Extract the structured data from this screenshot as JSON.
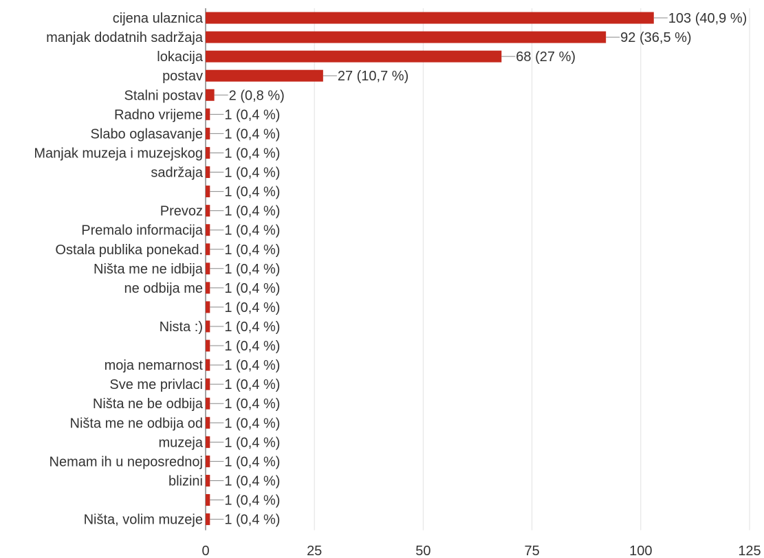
{
  "chart_data": {
    "type": "bar",
    "orientation": "horizontal",
    "bar_color": "#c5281c",
    "xlim": [
      0,
      125
    ],
    "x_ticks": [
      0,
      25,
      50,
      75,
      100,
      125
    ],
    "grid": true,
    "rows": [
      {
        "value": 103,
        "label": "103 (40,9 %)"
      },
      {
        "value": 92,
        "label": "92 (36,5 %)"
      },
      {
        "value": 68,
        "label": "68 (27 %)"
      },
      {
        "value": 27,
        "label": "27 (10,7 %)"
      },
      {
        "value": 2,
        "label": "2 (0,8 %)"
      },
      {
        "value": 1,
        "label": "1 (0,4 %)"
      },
      {
        "value": 1,
        "label": "1 (0,4 %)"
      },
      {
        "value": 1,
        "label": "1 (0,4 %)"
      },
      {
        "value": 1,
        "label": "1 (0,4 %)"
      },
      {
        "value": 1,
        "label": "1 (0,4 %)"
      },
      {
        "value": 1,
        "label": "1 (0,4 %)"
      },
      {
        "value": 1,
        "label": "1 (0,4 %)"
      },
      {
        "value": 1,
        "label": "1 (0,4 %)"
      },
      {
        "value": 1,
        "label": "1 (0,4 %)"
      },
      {
        "value": 1,
        "label": "1 (0,4 %)"
      },
      {
        "value": 1,
        "label": "1 (0,4 %)"
      },
      {
        "value": 1,
        "label": "1 (0,4 %)"
      },
      {
        "value": 1,
        "label": "1 (0,4 %)"
      },
      {
        "value": 1,
        "label": "1 (0,4 %)"
      },
      {
        "value": 1,
        "label": "1 (0,4 %)"
      },
      {
        "value": 1,
        "label": "1 (0,4 %)"
      },
      {
        "value": 1,
        "label": "1 (0,4 %)"
      },
      {
        "value": 1,
        "label": "1 (0,4 %)"
      },
      {
        "value": 1,
        "label": "1 (0,4 %)"
      },
      {
        "value": 1,
        "label": "1 (0,4 %)"
      },
      {
        "value": 1,
        "label": "1 (0,4 %)"
      },
      {
        "value": 1,
        "label": "1 (0,4 %)"
      }
    ],
    "category_labels": [
      {
        "lines": [
          "cijena ulaznica"
        ],
        "row": 0
      },
      {
        "lines": [
          "manjak dodatnih sadržaja"
        ],
        "row": 1
      },
      {
        "lines": [
          "lokacija"
        ],
        "row": 2
      },
      {
        "lines": [
          "postav"
        ],
        "row": 3
      },
      {
        "lines": [
          "Stalni postav"
        ],
        "row": 4
      },
      {
        "lines": [
          "Radno vrijeme"
        ],
        "row": 5
      },
      {
        "lines": [
          "Slabo oglasavanje"
        ],
        "row": 6
      },
      {
        "lines": [
          "Manjak muzeja i muzejskog",
          "sadržaja"
        ],
        "row": 8
      },
      {
        "lines": [
          "Prevoz"
        ],
        "row": 10
      },
      {
        "lines": [
          "Premalo informacija"
        ],
        "row": 11
      },
      {
        "lines": [
          "Ostala publika ponekad."
        ],
        "row": 12
      },
      {
        "lines": [
          "Ništa me ne idbija"
        ],
        "row": 13
      },
      {
        "lines": [
          "ne odbija me"
        ],
        "row": 14
      },
      {
        "lines": [
          "Nista :)"
        ],
        "row": 16
      },
      {
        "lines": [
          "moja nemarnost"
        ],
        "row": 18
      },
      {
        "lines": [
          "Sve me privlaci"
        ],
        "row": 19
      },
      {
        "lines": [
          "Ništa ne be odbija"
        ],
        "row": 20
      },
      {
        "lines": [
          "Ništa me ne odbija od",
          "muzeja"
        ],
        "row": 22
      },
      {
        "lines": [
          "Nemam ih u neposrednoj",
          "blizini"
        ],
        "row": 24
      },
      {
        "lines": [
          "Ništa, volim muzeje"
        ],
        "row": 26
      }
    ]
  }
}
